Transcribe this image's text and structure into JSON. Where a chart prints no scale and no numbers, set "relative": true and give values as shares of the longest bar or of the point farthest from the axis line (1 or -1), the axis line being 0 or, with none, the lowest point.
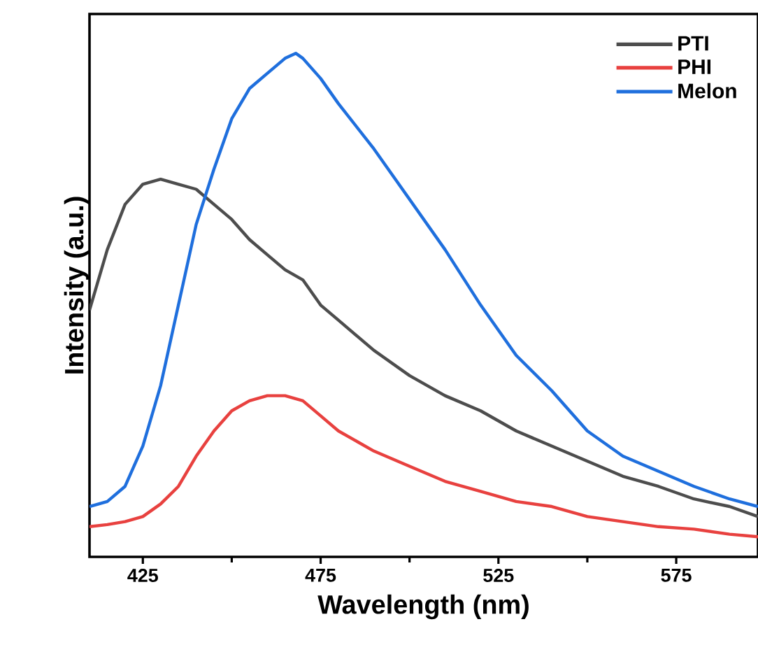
{
  "chart_data": {
    "type": "line",
    "xlabel": "Wavelength (nm)",
    "ylabel": "Intensity (a.u.)",
    "relative": true,
    "xlim": [
      410,
      598
    ],
    "xticks": [
      425,
      475,
      525,
      575
    ],
    "legend": "top right",
    "line_style": "solid",
    "grid": false,
    "x": [
      410,
      415,
      420,
      425,
      430,
      435,
      440,
      445,
      450,
      455,
      460,
      465,
      470,
      475,
      480,
      490,
      500,
      510,
      520,
      530,
      540,
      550,
      560,
      570,
      580,
      590,
      598
    ],
    "series": [
      {
        "name": "PTI",
        "color": "#4d4d4d",
        "values": [
          0.49,
          0.61,
          0.7,
          0.74,
          0.75,
          0.74,
          0.73,
          0.7,
          0.67,
          0.63,
          0.6,
          0.57,
          0.55,
          0.5,
          0.47,
          0.41,
          0.36,
          0.32,
          0.29,
          0.25,
          0.22,
          0.19,
          0.16,
          0.14,
          0.115,
          0.1,
          0.08
        ]
      },
      {
        "name": "PHI",
        "color": "#e8413f",
        "values": [
          0.06,
          0.064,
          0.07,
          0.08,
          0.105,
          0.14,
          0.2,
          0.25,
          0.29,
          0.31,
          0.32,
          0.32,
          0.31,
          0.28,
          0.25,
          0.21,
          0.18,
          0.15,
          0.13,
          0.11,
          0.1,
          0.08,
          0.07,
          0.06,
          0.055,
          0.045,
          0.04
        ]
      },
      {
        "name": "Melon",
        "color": "#1f6fdd",
        "x": [
          410,
          415,
          420,
          425,
          430,
          435,
          440,
          445,
          450,
          455,
          460,
          465,
          468,
          470,
          475,
          480,
          490,
          500,
          510,
          520,
          530,
          540,
          550,
          560,
          570,
          580,
          590,
          598
        ],
        "values": [
          0.1,
          0.11,
          0.14,
          0.22,
          0.34,
          0.5,
          0.66,
          0.77,
          0.87,
          0.93,
          0.96,
          0.99,
          1.0,
          0.99,
          0.95,
          0.9,
          0.81,
          0.71,
          0.61,
          0.5,
          0.4,
          0.33,
          0.25,
          0.2,
          0.17,
          0.14,
          0.115,
          0.1
        ]
      }
    ]
  }
}
